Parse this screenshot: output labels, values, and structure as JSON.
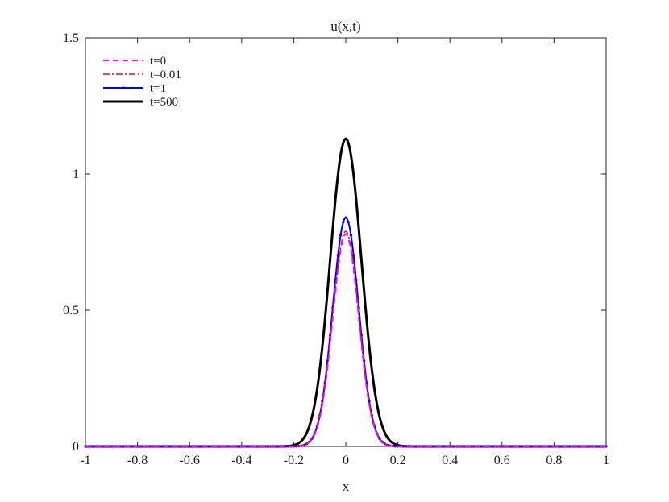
{
  "chart_data": {
    "type": "line",
    "title": "u(x,t)",
    "xlabel": "x",
    "ylabel": "",
    "xlim": [
      -1,
      1
    ],
    "ylim": [
      0,
      1.5
    ],
    "xticks": [
      -1,
      -0.8,
      -0.6,
      -0.4,
      -0.2,
      0,
      0.2,
      0.4,
      0.6,
      0.8,
      1
    ],
    "xtick_labels": [
      "-1",
      "-0.8",
      "-0.6",
      "-0.4",
      "-0.2",
      "0",
      "0.2",
      "0.4",
      "0.6",
      "0.8",
      "1"
    ],
    "yticks": [
      0,
      0.5,
      1,
      1.5
    ],
    "ytick_labels": [
      "0",
      "0.5",
      "1",
      "1.5"
    ],
    "grid": false,
    "legend_position": "top-left",
    "series": [
      {
        "name": "t=0",
        "color": "#ff00ff",
        "style": "dashed",
        "peak": 0.78,
        "width": 0.05
      },
      {
        "name": "t=0.01",
        "color": "#ff0000",
        "style": "dashdot",
        "peak": 0.79,
        "width": 0.05
      },
      {
        "name": "t=1",
        "color": "#0000ff",
        "style": "solid-dots",
        "peak": 0.84,
        "width": 0.05
      },
      {
        "name": "t=500",
        "color": "#000000",
        "style": "solid-thick",
        "peak": 1.13,
        "width": 0.06
      }
    ]
  }
}
